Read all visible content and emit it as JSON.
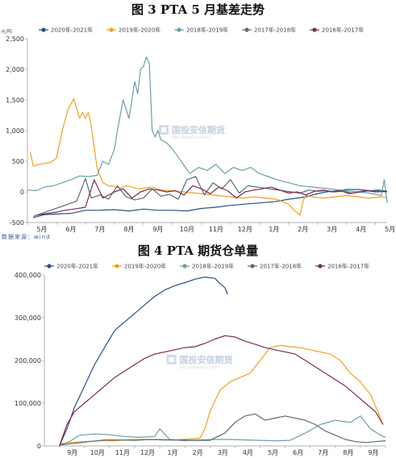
{
  "titles": {
    "chart1": "图 3 PTA 5 月基差走势",
    "chart2": "图 4 PTA 期货仓单量"
  },
  "source": "数据来源：wind",
  "watermark": {
    "text": "国投安信期货",
    "subtitle": "SDIC ESSENCE FUTURES"
  },
  "colors": {
    "s2020_2021": "#2a4f8c",
    "s2019_2020": "#f2a11c",
    "s2018_2019": "#68a0a8",
    "s2017_2018": "#5a6d73",
    "s2016_2017": "#7a2a58"
  },
  "chart_data": [
    {
      "type": "line",
      "ylabel": "元/吨",
      "ylim": [
        -500,
        2500
      ],
      "y_ticks": [
        -500,
        0,
        500,
        1000,
        1500,
        2000,
        2500
      ],
      "y_tick_labels": [
        "-500",
        "0",
        "500",
        "1,000",
        "1,500",
        "2,000",
        "2,500"
      ],
      "xlim": [
        0,
        12.4
      ],
      "x_ticks": [
        0,
        1,
        2,
        3,
        4,
        5,
        6,
        7,
        8,
        9,
        10,
        11,
        12
      ],
      "x_tick_labels": [
        "5月",
        "6月",
        "7月",
        "8月",
        "9月",
        "10月",
        "11月",
        "12月",
        "1月",
        "2月",
        "3月",
        "4月",
        "5月"
      ],
      "legend": "top",
      "series": [
        {
          "name": "2020年-2021年",
          "key": "s2020_2021",
          "x": [
            0.2,
            0.6,
            1.0,
            1.5,
            2.0,
            2.5,
            3.0,
            3.5,
            4.0,
            4.5,
            5.0,
            5.5,
            6.0,
            6.5,
            7.0,
            7.5,
            8.0,
            8.5,
            9.0,
            9.3,
            9.6,
            9.9,
            10.3,
            10.7,
            11.0,
            11.4,
            11.8,
            12.1,
            12.4
          ],
          "y": [
            -420,
            -370,
            -360,
            -350,
            -300,
            -300,
            -290,
            -310,
            -280,
            -300,
            -300,
            -310,
            -270,
            -250,
            -220,
            -200,
            -180,
            -160,
            -120,
            -100,
            -80,
            -40,
            0,
            20,
            40,
            40,
            20,
            30,
            10
          ]
        },
        {
          "name": "2019年-2020年",
          "key": "s2019_2020",
          "x": [
            0.1,
            0.2,
            0.4,
            0.8,
            1.0,
            1.2,
            1.4,
            1.6,
            1.8,
            1.9,
            2.0,
            2.1,
            2.2,
            2.4,
            2.6,
            2.8,
            3.0,
            3.2,
            3.4,
            3.6,
            3.8,
            4.0,
            4.3,
            4.6,
            5.0,
            5.4,
            5.8,
            6.2,
            6.6,
            7.0,
            7.4,
            7.8,
            8.2,
            8.6,
            9.0,
            9.2,
            9.4,
            9.5,
            9.6,
            9.8,
            10.2,
            10.6,
            11.0,
            11.4,
            11.8,
            12.2,
            12.4
          ],
          "y": [
            650,
            420,
            450,
            480,
            550,
            1000,
            1350,
            1520,
            1200,
            1300,
            1200,
            1300,
            1080,
            400,
            150,
            100,
            90,
            60,
            100,
            80,
            50,
            60,
            80,
            30,
            20,
            0,
            -20,
            -40,
            -60,
            -80,
            -100,
            -80,
            -100,
            -120,
            -200,
            -300,
            -380,
            -150,
            -50,
            -80,
            -100,
            -80,
            -60,
            -80,
            -100,
            -80,
            -100
          ]
        },
        {
          "name": "2018年-2019年",
          "key": "s2018_2019",
          "x": [
            0.0,
            0.3,
            0.6,
            0.9,
            1.2,
            1.5,
            1.8,
            2.1,
            2.4,
            2.6,
            2.8,
            3.0,
            3.1,
            3.3,
            3.5,
            3.7,
            3.8,
            3.9,
            4.0,
            4.1,
            4.2,
            4.3,
            4.4,
            4.5,
            4.6,
            4.8,
            5.0,
            5.3,
            5.6,
            5.9,
            6.2,
            6.5,
            6.8,
            7.1,
            7.4,
            7.7,
            8.0,
            8.3,
            8.6,
            9.0,
            9.4,
            9.8,
            10.2,
            10.6,
            11.0,
            11.4,
            11.8,
            12.2,
            12.3,
            12.4
          ],
          "y": [
            30,
            20,
            80,
            100,
            150,
            200,
            260,
            250,
            270,
            500,
            450,
            700,
            1000,
            1500,
            1200,
            1800,
            1600,
            2000,
            2050,
            2200,
            2100,
            1000,
            900,
            1000,
            850,
            800,
            700,
            500,
            300,
            400,
            350,
            450,
            300,
            400,
            350,
            400,
            300,
            250,
            200,
            150,
            100,
            80,
            60,
            40,
            20,
            0,
            -20,
            -60,
            200,
            -180
          ]
        },
        {
          "name": "2017年-2018年",
          "key": "s2017_2018",
          "x": [
            0.2,
            0.5,
            0.8,
            1.1,
            1.4,
            1.7,
            2.0,
            2.2,
            2.5,
            2.8,
            3.1,
            3.4,
            3.7,
            4.0,
            4.3,
            4.6,
            4.9,
            5.2,
            5.5,
            5.8,
            6.1,
            6.4,
            6.7,
            7.0,
            7.3,
            7.6,
            7.9,
            8.2,
            8.5,
            8.8,
            9.1,
            9.4,
            9.7,
            10.0,
            10.3,
            10.6,
            10.9,
            11.2,
            11.5,
            11.8,
            12.1,
            12.4
          ],
          "y": [
            -400,
            -350,
            -300,
            -250,
            -200,
            -150,
            220,
            -100,
            -50,
            -120,
            100,
            -80,
            -130,
            -100,
            50,
            -70,
            -40,
            -120,
            200,
            250,
            -50,
            150,
            50,
            200,
            -20,
            100,
            80,
            60,
            40,
            20,
            0,
            -20,
            30,
            10,
            20,
            0,
            10,
            -20,
            0,
            20,
            10,
            0
          ]
        },
        {
          "name": "2016年-2017年",
          "key": "s2016_2017",
          "x": [
            0.3,
            0.7,
            1.0,
            1.3,
            1.6,
            2.0,
            2.3,
            2.6,
            3.0,
            3.3,
            3.6,
            3.9,
            4.2,
            4.5,
            4.8,
            5.1,
            5.4,
            5.7,
            6.0,
            6.3,
            6.6,
            6.9,
            7.2,
            7.5,
            7.8,
            8.1,
            8.4,
            8.7,
            9.0,
            9.3,
            9.6,
            9.9,
            10.2,
            10.5,
            10.8,
            11.1,
            11.4,
            11.7,
            12.0,
            12.4
          ],
          "y": [
            -380,
            -350,
            -330,
            -300,
            -280,
            -250,
            200,
            -100,
            0,
            50,
            -100,
            0,
            50,
            30,
            0,
            20,
            -50,
            100,
            50,
            -30,
            80,
            20,
            -100,
            0,
            30,
            50,
            80,
            30,
            -20,
            0,
            -50,
            10,
            30,
            0,
            20,
            -30,
            0,
            20,
            0,
            10
          ]
        }
      ]
    },
    {
      "type": "line",
      "ylim": [
        0,
        400000
      ],
      "y_ticks": [
        0,
        100000,
        200000,
        300000,
        400000
      ],
      "y_tick_labels": [
        "0",
        "100,000",
        "200,000",
        "300,000",
        "400,000"
      ],
      "xlim": [
        0,
        13.6
      ],
      "x_ticks": [
        0.6,
        1.6,
        2.6,
        3.6,
        4.6,
        5.6,
        6.6,
        7.6,
        8.6,
        9.6,
        10.6,
        11.6,
        12.6,
        13.6
      ],
      "x_tick_labels": [
        "9月",
        "10月",
        "11月",
        "12月",
        "1月",
        "2月",
        "3月",
        "4月",
        "5月",
        "6月",
        "7月",
        "8月",
        "9月",
        ""
      ],
      "legend": "top",
      "series": [
        {
          "name": "2020年-2021年",
          "key": "s2020_2021",
          "x": [
            0.6,
            0.9,
            1.2,
            1.6,
            2.0,
            2.4,
            2.8,
            3.2,
            3.6,
            4.0,
            4.4,
            4.8,
            5.2,
            5.6,
            6.0,
            6.4,
            6.8,
            7.0,
            7.2,
            7.3
          ],
          "y": [
            0,
            40000,
            90000,
            140000,
            190000,
            230000,
            270000,
            290000,
            310000,
            330000,
            350000,
            365000,
            375000,
            382000,
            390000,
            395000,
            392000,
            380000,
            370000,
            355000
          ]
        },
        {
          "name": "2019年-2020年",
          "key": "s2019_2020",
          "x": [
            0.6,
            1.0,
            1.6,
            2.2,
            2.8,
            3.4,
            4.0,
            4.6,
            5.2,
            5.8,
            6.2,
            6.4,
            6.6,
            7.0,
            7.4,
            7.8,
            8.2,
            8.6,
            9.0,
            9.4,
            9.8,
            10.2,
            10.6,
            11.0,
            11.4,
            11.8,
            12.2,
            12.6,
            13.0,
            13.3,
            13.5
          ],
          "y": [
            5000,
            8000,
            10000,
            12000,
            12000,
            15000,
            15000,
            15000,
            14000,
            16000,
            18000,
            40000,
            80000,
            130000,
            150000,
            160000,
            170000,
            200000,
            230000,
            235000,
            232000,
            230000,
            225000,
            220000,
            215000,
            200000,
            170000,
            150000,
            120000,
            80000,
            50000
          ]
        },
        {
          "name": "2018年-2019年",
          "key": "s2018_2019",
          "x": [
            0.6,
            1.0,
            1.4,
            2.0,
            2.6,
            3.2,
            3.8,
            4.4,
            4.6,
            5.0,
            5.6,
            6.2,
            6.8,
            7.4,
            8.0,
            8.6,
            9.2,
            9.8,
            10.4,
            11.0,
            11.6,
            12.2,
            12.6,
            13.0,
            13.4,
            13.6
          ],
          "y": [
            2000,
            10000,
            25000,
            28000,
            26000,
            22000,
            20000,
            22000,
            40000,
            15000,
            12000,
            14000,
            15000,
            15000,
            14000,
            13000,
            12000,
            13000,
            30000,
            50000,
            60000,
            55000,
            70000,
            40000,
            25000,
            20000
          ]
        },
        {
          "name": "2017年-2018年",
          "key": "s2017_2018",
          "x": [
            0.6,
            1.2,
            1.8,
            2.4,
            3.0,
            3.6,
            4.2,
            4.8,
            5.4,
            6.0,
            6.6,
            7.2,
            7.6,
            8.0,
            8.4,
            8.8,
            9.2,
            9.6,
            10.0,
            10.4,
            10.8,
            11.2,
            11.6,
            12.0,
            12.4,
            12.8,
            13.2,
            13.6
          ],
          "y": [
            2000,
            6000,
            10000,
            14000,
            14000,
            13000,
            15000,
            14000,
            14000,
            13000,
            13000,
            30000,
            55000,
            70000,
            75000,
            60000,
            65000,
            70000,
            65000,
            60000,
            50000,
            35000,
            25000,
            15000,
            10000,
            8000,
            10000,
            12000
          ]
        },
        {
          "name": "2016年-2017年",
          "key": "s2016_2017",
          "x": [
            0.6,
            0.9,
            1.2,
            1.6,
            2.0,
            2.4,
            2.8,
            3.2,
            3.6,
            4.0,
            4.4,
            4.8,
            5.2,
            5.6,
            6.0,
            6.4,
            6.8,
            7.2,
            7.6,
            8.0,
            8.4,
            8.8,
            9.2,
            9.6,
            10.0,
            10.4,
            10.8,
            11.2,
            11.6,
            12.0,
            12.4,
            12.8,
            13.2,
            13.5
          ],
          "y": [
            0,
            50000,
            80000,
            100000,
            120000,
            140000,
            160000,
            175000,
            190000,
            205000,
            215000,
            220000,
            225000,
            230000,
            232000,
            240000,
            250000,
            258000,
            255000,
            245000,
            238000,
            230000,
            225000,
            220000,
            215000,
            200000,
            185000,
            170000,
            155000,
            140000,
            120000,
            100000,
            80000,
            50000
          ]
        }
      ]
    }
  ]
}
